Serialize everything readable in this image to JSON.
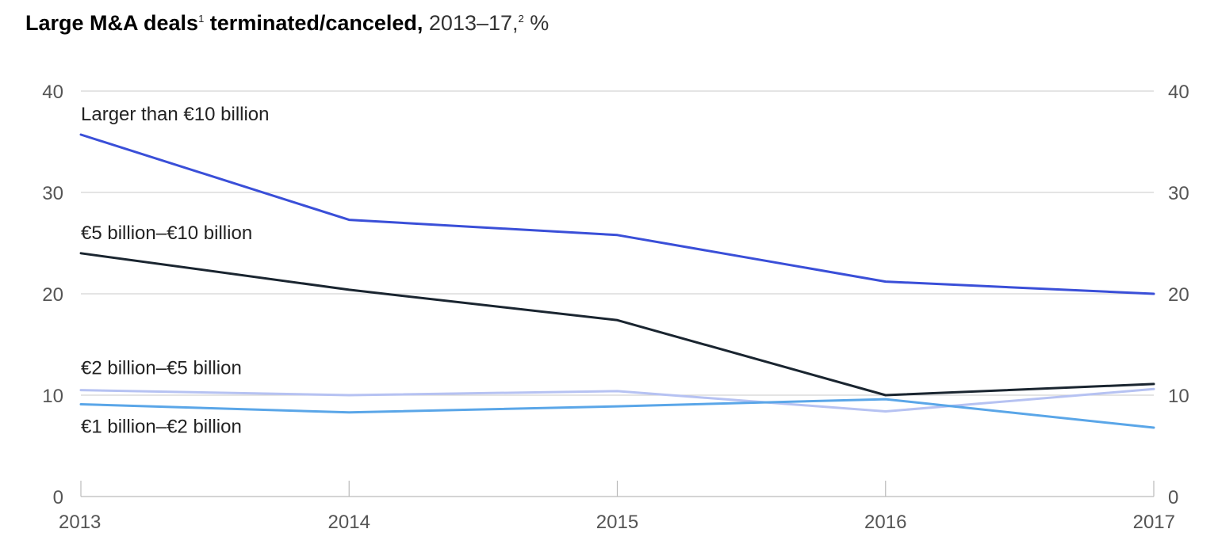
{
  "title": {
    "main": "Large M&A deals",
    "note1": "1",
    "middle": " terminated/canceled,",
    "span": " 2013–17,",
    "note2": "2",
    "unit": " %"
  },
  "chart_data": {
    "type": "line",
    "title": "Large M&A deals terminated/canceled, 2013–17, %",
    "x": [
      "2013",
      "2014",
      "2015",
      "2016",
      "2017"
    ],
    "ylim": [
      0,
      40
    ],
    "yticks": [
      0,
      10,
      20,
      30,
      40
    ],
    "grid": true,
    "dual_y_axis": true,
    "series": [
      {
        "name": "Larger than €10 billion",
        "color": "#3a4fd8",
        "values": [
          35.7,
          27.3,
          25.8,
          21.2,
          20.0
        ]
      },
      {
        "name": "€5 billion–€10 billion",
        "color": "#1a2530",
        "values": [
          24.0,
          20.4,
          17.4,
          10.0,
          11.1
        ]
      },
      {
        "name": "€2 billion–€5 billion",
        "color": "#b6c2f2",
        "values": [
          10.5,
          10.0,
          10.4,
          8.4,
          10.6
        ]
      },
      {
        "name": "€1 billion–€2 billion",
        "color": "#5aa6e8",
        "values": [
          9.1,
          8.3,
          8.9,
          9.6,
          6.8
        ]
      }
    ]
  }
}
